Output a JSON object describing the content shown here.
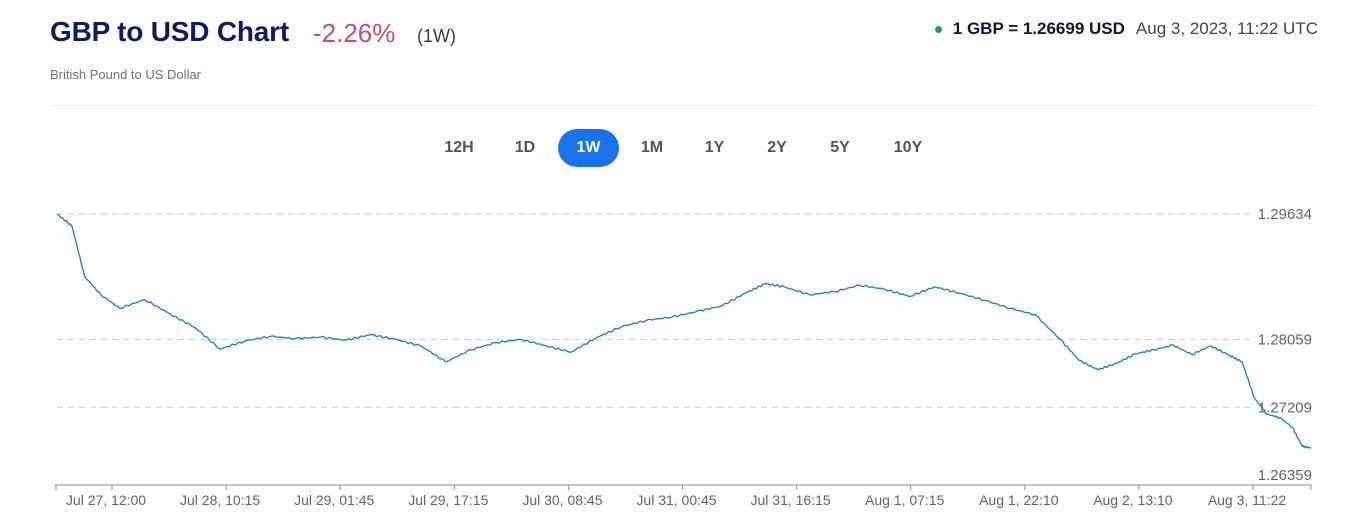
{
  "header": {
    "title": "GBP to USD Chart",
    "change": "-2.26%",
    "period": "(1W)",
    "subtitle": "British Pound to US Dollar",
    "rate": "1 GBP = 1.26699 USD",
    "timestamp": "Aug 3, 2023, 11:22 UTC"
  },
  "tabs": [
    {
      "label": "12H",
      "active": false
    },
    {
      "label": "1D",
      "active": false
    },
    {
      "label": "1W",
      "active": true
    },
    {
      "label": "1M",
      "active": false
    },
    {
      "label": "1Y",
      "active": false
    },
    {
      "label": "2Y",
      "active": false
    },
    {
      "label": "5Y",
      "active": false
    },
    {
      "label": "10Y",
      "active": false
    }
  ],
  "colors": {
    "title": "#0e1b66",
    "negative": "#cc4b6b",
    "live_dot": "#1fa34a",
    "accent": "#1a73e8",
    "line": "#1a7ad4",
    "grid": "#cfd3d8"
  },
  "chart_data": {
    "type": "line",
    "title": "",
    "xlabel": "",
    "ylabel": "",
    "ylim": [
      1.26359,
      1.29634
    ],
    "yticks": [
      "1.29634",
      "1.28059",
      "1.27209",
      "1.26359"
    ],
    "xtick_labels": [
      "Jul 27, 12:00",
      "Jul 28, 10:15",
      "Jul 29, 01:45",
      "Jul 29, 17:15",
      "Jul 30, 08:45",
      "Jul 31, 00:45",
      "Jul 31, 16:15",
      "Aug 1, 07:15",
      "Aug 1, 22:10",
      "Aug 2, 13:10",
      "Aug 3, 11:22"
    ],
    "grid": true,
    "legend": "none",
    "series": [
      {
        "points": [
          [
            0,
            1.29634
          ],
          [
            0.012,
            1.2948
          ],
          [
            0.022,
            1.2885
          ],
          [
            0.035,
            1.2862
          ],
          [
            0.05,
            1.2845
          ],
          [
            0.07,
            1.2856
          ],
          [
            0.09,
            1.2838
          ],
          [
            0.11,
            1.2821
          ],
          [
            0.13,
            1.2794
          ],
          [
            0.15,
            1.2804
          ],
          [
            0.17,
            1.281
          ],
          [
            0.19,
            1.2807
          ],
          [
            0.21,
            1.2809
          ],
          [
            0.23,
            1.2805
          ],
          [
            0.25,
            1.2812
          ],
          [
            0.27,
            1.2806
          ],
          [
            0.29,
            1.2798
          ],
          [
            0.31,
            1.2778
          ],
          [
            0.33,
            1.2793
          ],
          [
            0.35,
            1.2802
          ],
          [
            0.37,
            1.2806
          ],
          [
            0.39,
            1.2798
          ],
          [
            0.41,
            1.279
          ],
          [
            0.43,
            1.2808
          ],
          [
            0.45,
            1.2822
          ],
          [
            0.47,
            1.283
          ],
          [
            0.49,
            1.2834
          ],
          [
            0.51,
            1.2841
          ],
          [
            0.53,
            1.2848
          ],
          [
            0.55,
            1.2865
          ],
          [
            0.565,
            1.2876
          ],
          [
            0.58,
            1.2872
          ],
          [
            0.6,
            1.2862
          ],
          [
            0.62,
            1.2866
          ],
          [
            0.64,
            1.2874
          ],
          [
            0.66,
            1.2869
          ],
          [
            0.68,
            1.286
          ],
          [
            0.7,
            1.2872
          ],
          [
            0.72,
            1.2864
          ],
          [
            0.74,
            1.2855
          ],
          [
            0.76,
            1.2845
          ],
          [
            0.78,
            1.2837
          ],
          [
            0.8,
            1.2806
          ],
          [
            0.815,
            1.278
          ],
          [
            0.83,
            1.2768
          ],
          [
            0.845,
            1.2776
          ],
          [
            0.86,
            1.2788
          ],
          [
            0.875,
            1.2793
          ],
          [
            0.89,
            1.2799
          ],
          [
            0.905,
            1.2787
          ],
          [
            0.92,
            1.2798
          ],
          [
            0.935,
            1.2786
          ],
          [
            0.945,
            1.2778
          ],
          [
            0.955,
            1.2732
          ],
          [
            0.965,
            1.2712
          ],
          [
            0.975,
            1.2708
          ],
          [
            0.985,
            1.2696
          ],
          [
            0.993,
            1.2672
          ],
          [
            1.0,
            1.26699
          ]
        ]
      }
    ]
  }
}
